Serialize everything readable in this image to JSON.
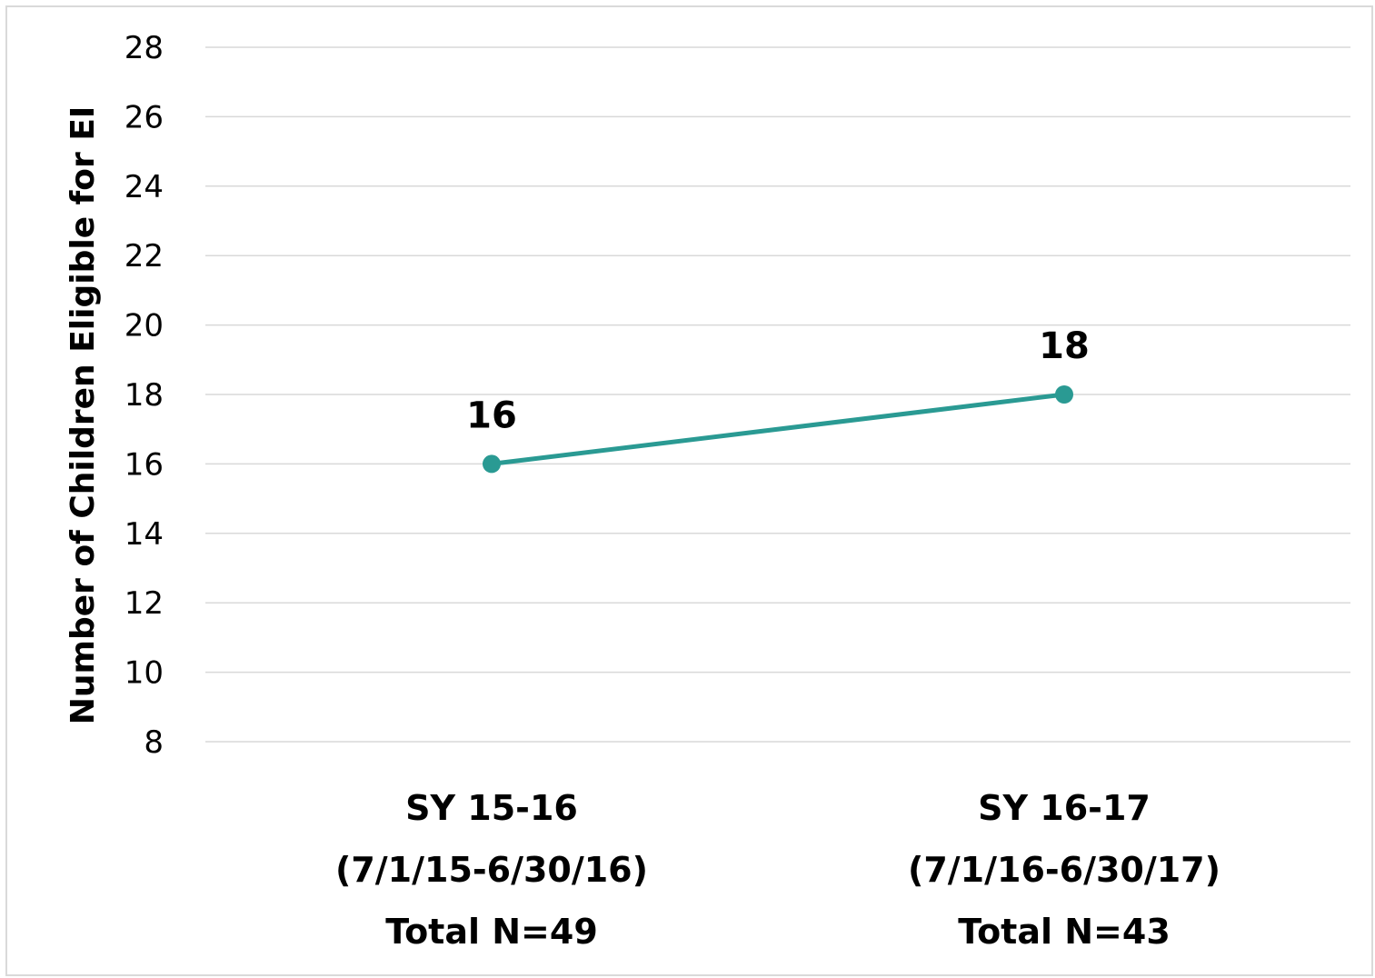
{
  "chart_data": {
    "type": "line",
    "title": "",
    "xlabel": "",
    "ylabel": "Number of Children Eligible for EI",
    "categories": [
      [
        "SY 15-16",
        "(7/1/15-6/30/16)",
        "Total N=49"
      ],
      [
        "SY 16-17",
        "(7/1/16-6/30/17)",
        "Total N=43"
      ]
    ],
    "series": [
      {
        "values": [
          16,
          18
        ],
        "data_labels": [
          "16",
          "18"
        ],
        "color": "#2a9a93"
      }
    ],
    "ylim": [
      8,
      28
    ],
    "yticks": [
      8,
      10,
      12,
      14,
      16,
      18,
      20,
      22,
      24,
      26,
      28
    ],
    "grid": true,
    "legend": "none",
    "gridline_color": "#d9d9d9",
    "frame_color": "#d9d9d9"
  }
}
